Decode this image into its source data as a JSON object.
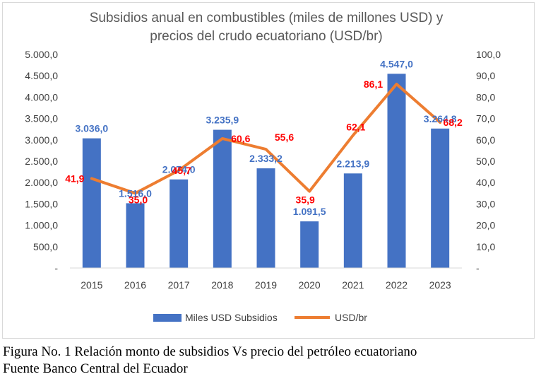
{
  "chart_data": {
    "type": "bar+line",
    "title": [
      "Subsidios anual en combustibles (miles de millones USD) y",
      "precios del crudo ecuatoriano (USD/br)"
    ],
    "categories": [
      "2015",
      "2016",
      "2017",
      "2018",
      "2019",
      "2020",
      "2021",
      "2022",
      "2023"
    ],
    "series": [
      {
        "name": "Miles USD Subsidios",
        "type": "bar",
        "axis": "left",
        "color": "#4472c4",
        "values": [
          3036.0,
          1516.0,
          2074.0,
          3235.9,
          2333.2,
          1091.5,
          2213.9,
          4547.0,
          3264.8
        ],
        "labels": [
          "3.036,0",
          "1.516,0",
          "2.074,0",
          "3.235,9",
          "2.333,2",
          "1.091,5",
          "2.213,9",
          "4.547,0",
          "3.264,8"
        ]
      },
      {
        "name": "USD/br",
        "type": "line",
        "axis": "right",
        "color": "#ed7d31",
        "values": [
          41.9,
          35.0,
          45.7,
          60.6,
          55.6,
          35.9,
          62.1,
          86.1,
          68.2
        ],
        "labels": [
          "41,9",
          "35,0",
          "45,7",
          "60,6",
          "55,6",
          "35,9",
          "62,1",
          "86,1",
          "68,2"
        ]
      }
    ],
    "y_left": {
      "range": [
        0,
        5000
      ],
      "ticks": [
        "-",
        "500,0",
        "1.000,0",
        "1.500,0",
        "2.000,0",
        "2.500,0",
        "3.000,0",
        "3.500,0",
        "4.000,0",
        "4.500,0",
        "5.000,0"
      ]
    },
    "y_right": {
      "range": [
        0,
        100
      ],
      "ticks": [
        "-",
        "10,0",
        "20,0",
        "30,0",
        "40,0",
        "50,0",
        "60,0",
        "70,0",
        "80,0",
        "90,0",
        "100,0"
      ]
    },
    "legend_position": "bottom",
    "grid": false
  },
  "caption": {
    "line1": "Figura No. 1 Relación monto de subsidios Vs precio del petróleo ecuatoriano",
    "line2": "Fuente Banco Central del Ecuador"
  }
}
